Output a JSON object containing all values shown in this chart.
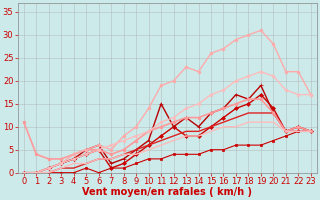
{
  "background_color": "#cceaea",
  "grid_color": "#aaaaaa",
  "xlabel": "Vent moyen/en rafales ( km/h )",
  "xlabel_color": "#cc0000",
  "xlabel_fontsize": 7,
  "tick_color": "#cc0000",
  "tick_fontsize": 6,
  "xlim": [
    -0.5,
    23.5
  ],
  "ylim": [
    0,
    37
  ],
  "yticks": [
    0,
    5,
    10,
    15,
    20,
    25,
    30,
    35
  ],
  "xticks": [
    0,
    1,
    2,
    3,
    4,
    5,
    6,
    7,
    8,
    9,
    10,
    11,
    12,
    13,
    14,
    15,
    16,
    17,
    18,
    19,
    20,
    21,
    22,
    23
  ],
  "series": [
    {
      "x": [
        0,
        1,
        2,
        3,
        4,
        5,
        6,
        7,
        8,
        9,
        10,
        11,
        12,
        13,
        14,
        15,
        16,
        17,
        18,
        19,
        20,
        21,
        22,
        23
      ],
      "y": [
        0,
        0,
        0,
        0,
        0,
        1,
        0,
        1,
        1,
        2,
        3,
        3,
        4,
        4,
        4,
        5,
        5,
        6,
        6,
        6,
        7,
        8,
        9,
        9
      ],
      "color": "#cc0000",
      "lw": 0.8,
      "marker": "s",
      "ms": 1.5
    },
    {
      "x": [
        0,
        1,
        2,
        3,
        4,
        5,
        6,
        7,
        8,
        9,
        10,
        11,
        12,
        13,
        14,
        15,
        16,
        17,
        18,
        19,
        20,
        21,
        22,
        23
      ],
      "y": [
        0,
        0,
        1,
        2,
        3,
        4,
        5,
        1,
        2,
        4,
        6,
        8,
        10,
        8,
        8,
        10,
        12,
        14,
        15,
        17,
        14,
        9,
        10,
        9
      ],
      "color": "#cc0000",
      "lw": 1.0,
      "marker": "D",
      "ms": 2.0
    },
    {
      "x": [
        0,
        1,
        2,
        3,
        4,
        5,
        6,
        7,
        8,
        9,
        10,
        11,
        12,
        13,
        14,
        15,
        16,
        17,
        18,
        19,
        20,
        21,
        22,
        23
      ],
      "y": [
        0,
        0,
        1,
        2,
        3,
        5,
        6,
        2,
        3,
        5,
        7,
        15,
        10,
        12,
        10,
        13,
        14,
        17,
        16,
        19,
        13,
        9,
        10,
        9
      ],
      "color": "#bb0000",
      "lw": 1.0,
      "marker": "+",
      "ms": 3.0
    },
    {
      "x": [
        0,
        1,
        2,
        3,
        4,
        5,
        6,
        7,
        8,
        9,
        10,
        11,
        12,
        13,
        14,
        15,
        16,
        17,
        18,
        19,
        20,
        21,
        22,
        23
      ],
      "y": [
        0,
        0,
        0,
        1,
        1,
        2,
        3,
        3,
        4,
        5,
        6,
        7,
        8,
        9,
        9,
        10,
        11,
        12,
        13,
        13,
        13,
        9,
        9,
        9
      ],
      "color": "#dd2222",
      "lw": 1.0,
      "marker": null,
      "ms": 0
    },
    {
      "x": [
        0,
        1,
        2,
        3,
        4,
        5,
        6,
        7,
        8,
        9,
        10,
        11,
        12,
        13,
        14,
        15,
        16,
        17,
        18,
        19,
        20,
        21,
        22,
        23
      ],
      "y": [
        11,
        4,
        3,
        3,
        4,
        5,
        5,
        4,
        5,
        7,
        9,
        10,
        11,
        12,
        12,
        13,
        14,
        15,
        16,
        16,
        13,
        9,
        10,
        9
      ],
      "color": "#ff9999",
      "lw": 1.2,
      "marker": "o",
      "ms": 2.0
    },
    {
      "x": [
        0,
        1,
        2,
        3,
        4,
        5,
        6,
        7,
        8,
        9,
        10,
        11,
        12,
        13,
        14,
        15,
        16,
        17,
        18,
        19,
        20,
        21,
        22,
        23
      ],
      "y": [
        0,
        0,
        0,
        1,
        2,
        2,
        3,
        3,
        4,
        4,
        5,
        6,
        7,
        8,
        8,
        9,
        10,
        10,
        11,
        11,
        11,
        9,
        9,
        9
      ],
      "color": "#ffbbbb",
      "lw": 1.0,
      "marker": null,
      "ms": 0
    },
    {
      "x": [
        0,
        1,
        2,
        3,
        4,
        5,
        6,
        7,
        8,
        9,
        10,
        11,
        12,
        13,
        14,
        15,
        16,
        17,
        18,
        19,
        20,
        21,
        22,
        23
      ],
      "y": [
        0,
        0,
        1,
        2,
        4,
        5,
        6,
        5,
        8,
        10,
        14,
        19,
        20,
        23,
        22,
        26,
        27,
        29,
        30,
        31,
        28,
        22,
        22,
        17
      ],
      "color": "#ffaaaa",
      "lw": 1.0,
      "marker": "o",
      "ms": 2.0
    },
    {
      "x": [
        0,
        1,
        2,
        3,
        4,
        5,
        6,
        7,
        8,
        9,
        10,
        11,
        12,
        13,
        14,
        15,
        16,
        17,
        18,
        19,
        20,
        21,
        22,
        23
      ],
      "y": [
        0,
        0,
        1,
        2,
        3,
        4,
        5,
        6,
        7,
        8,
        9,
        11,
        12,
        14,
        15,
        17,
        18,
        20,
        21,
        22,
        21,
        18,
        17,
        17
      ],
      "color": "#ffbbbb",
      "lw": 1.0,
      "marker": "o",
      "ms": 1.8
    }
  ]
}
